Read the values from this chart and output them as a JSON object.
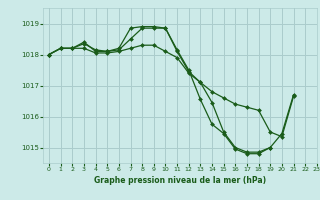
{
  "title": "Graphe pression niveau de la mer (hPa)",
  "bg_color": "#cceae8",
  "grid_color": "#aacccc",
  "line_color": "#1a5c1a",
  "marker_color": "#1a5c1a",
  "xlim": [
    -0.5,
    23
  ],
  "ylim": [
    1014.5,
    1019.5
  ],
  "yticks": [
    1015,
    1016,
    1017,
    1018,
    1019
  ],
  "xticks": [
    0,
    1,
    2,
    3,
    4,
    5,
    6,
    7,
    8,
    9,
    10,
    11,
    12,
    13,
    14,
    15,
    16,
    17,
    18,
    19,
    20,
    21,
    22,
    23
  ],
  "series": [
    [
      1018.0,
      1018.2,
      1018.2,
      1018.35,
      1018.15,
      1018.1,
      1018.2,
      1018.85,
      1018.9,
      1018.9,
      1018.85,
      1018.15,
      1017.5,
      1016.55,
      1015.75,
      1015.45,
      1014.95,
      1014.8,
      1014.8,
      1015.0,
      1015.45,
      1016.7,
      null,
      null
    ],
    [
      1018.0,
      1018.2,
      1018.2,
      1018.4,
      1018.1,
      1018.1,
      1018.15,
      1018.5,
      1018.85,
      1018.85,
      1018.85,
      1018.1,
      1017.45,
      1017.1,
      1016.45,
      1015.5,
      1015.0,
      1014.85,
      1014.85,
      1015.0,
      null,
      null,
      null,
      null
    ],
    [
      1018.0,
      1018.2,
      1018.2,
      1018.2,
      1018.05,
      1018.05,
      1018.1,
      1018.2,
      1018.3,
      1018.3,
      1018.1,
      1017.9,
      1017.4,
      1017.1,
      1016.8,
      1016.6,
      1016.4,
      1016.3,
      1016.2,
      1015.5,
      1015.35,
      1016.65,
      null,
      null
    ]
  ]
}
